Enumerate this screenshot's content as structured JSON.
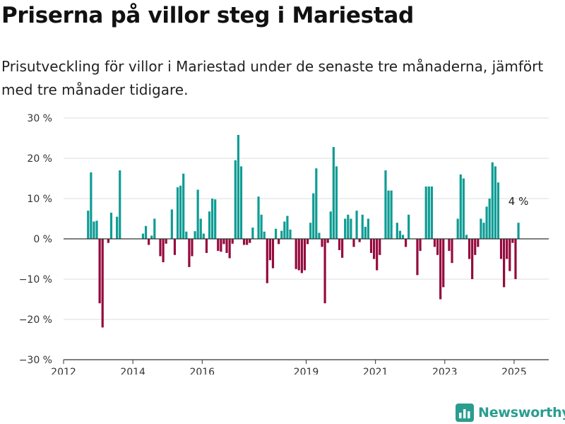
{
  "header": {
    "title": "Priserna på villor steg i Mariestad",
    "subtitle": "Prisutveckling för villor i Mariestad under de senaste tre månaderna, jämfört med tre månader tidigare."
  },
  "brand": {
    "name": "Newsworthy"
  },
  "colors": {
    "positive": "#0e9c94",
    "negative": "#940a3d",
    "grid": "#dddddd",
    "axis": "#333333"
  },
  "chart_data": {
    "type": "bar",
    "title": "Priserna på villor steg i Mariestad",
    "xlabel": "",
    "ylabel": "",
    "ylim": [
      -30,
      30
    ],
    "yticks": [
      30,
      20,
      10,
      0,
      -10,
      -20,
      -30
    ],
    "ytick_labels": [
      "30 %",
      "20 %",
      "10 %",
      "0 %",
      "−10 %",
      "−20 %",
      "−30 %"
    ],
    "xticks": [
      "2012",
      "2014",
      "2016",
      "2019",
      "2021",
      "2023",
      "2025"
    ],
    "xlim_months": [
      "2012-01",
      "2025-12"
    ],
    "last_label": "4 %",
    "series": [
      {
        "values": [
          [
            "2012-09",
            7
          ],
          [
            "2012-10",
            16.5
          ],
          [
            "2012-11",
            4.3
          ],
          [
            "2012-12",
            4.5
          ],
          [
            "2013-01",
            -16
          ],
          [
            "2013-02",
            -22
          ],
          [
            "2013-04",
            -1
          ],
          [
            "2013-05",
            6.5
          ],
          [
            "2013-07",
            5.5
          ],
          [
            "2013-08",
            17
          ],
          [
            "2014-04",
            1.3
          ],
          [
            "2014-05",
            3.2
          ],
          [
            "2014-06",
            -1.5
          ],
          [
            "2014-07",
            0.8
          ],
          [
            "2014-08",
            5
          ],
          [
            "2014-10",
            -4.3
          ],
          [
            "2014-11",
            -5.8
          ],
          [
            "2014-12",
            -1.2
          ],
          [
            "2015-02",
            7.3
          ],
          [
            "2015-03",
            -4
          ],
          [
            "2015-04",
            12.8
          ],
          [
            "2015-05",
            13.2
          ],
          [
            "2015-06",
            16.2
          ],
          [
            "2015-07",
            1.8
          ],
          [
            "2015-08",
            -7
          ],
          [
            "2015-09",
            -4.3
          ],
          [
            "2015-10",
            1.9
          ],
          [
            "2015-11",
            12.2
          ],
          [
            "2015-12",
            5
          ],
          [
            "2016-01",
            1.3
          ],
          [
            "2016-02",
            -3.5
          ],
          [
            "2016-03",
            6.8
          ],
          [
            "2016-04",
            10
          ],
          [
            "2016-05",
            9.8
          ],
          [
            "2016-06",
            -3
          ],
          [
            "2016-07",
            -3.2
          ],
          [
            "2016-08",
            -1.3
          ],
          [
            "2016-09",
            -3.5
          ],
          [
            "2016-10",
            -4.8
          ],
          [
            "2016-11",
            -1.2
          ],
          [
            "2016-12",
            19.5
          ],
          [
            "2017-01",
            25.8
          ],
          [
            "2017-02",
            18
          ],
          [
            "2017-03",
            -1.5
          ],
          [
            "2017-04",
            -1.5
          ],
          [
            "2017-05",
            -1
          ],
          [
            "2017-06",
            2.8
          ],
          [
            "2017-08",
            10.5
          ],
          [
            "2017-09",
            6
          ],
          [
            "2017-10",
            1.8
          ],
          [
            "2017-11",
            -11
          ],
          [
            "2017-12",
            -5.3
          ],
          [
            "2018-01",
            -7.3
          ],
          [
            "2018-02",
            2.5
          ],
          [
            "2018-03",
            -1.3
          ],
          [
            "2018-04",
            2
          ],
          [
            "2018-05",
            4.3
          ],
          [
            "2018-06",
            5.7
          ],
          [
            "2018-07",
            2.3
          ],
          [
            "2018-09",
            -7.5
          ],
          [
            "2018-10",
            -7.8
          ],
          [
            "2018-11",
            -8.5
          ],
          [
            "2018-12",
            -7.8
          ],
          [
            "2019-01",
            -1.3
          ],
          [
            "2019-02",
            4
          ],
          [
            "2019-03",
            11.3
          ],
          [
            "2019-04",
            17.5
          ],
          [
            "2019-05",
            1.5
          ],
          [
            "2019-06",
            -2
          ],
          [
            "2019-07",
            -16
          ],
          [
            "2019-08",
            -1
          ],
          [
            "2019-09",
            6.8
          ],
          [
            "2019-10",
            22.8
          ],
          [
            "2019-11",
            18
          ],
          [
            "2019-12",
            -2.8
          ],
          [
            "2020-01",
            -4.7
          ],
          [
            "2020-02",
            5
          ],
          [
            "2020-03",
            6
          ],
          [
            "2020-04",
            5
          ],
          [
            "2020-05",
            -2
          ],
          [
            "2020-06",
            7
          ],
          [
            "2020-07",
            -0.8
          ],
          [
            "2020-08",
            6
          ],
          [
            "2020-09",
            3
          ],
          [
            "2020-10",
            5
          ],
          [
            "2020-11",
            -3.5
          ],
          [
            "2020-12",
            -5
          ],
          [
            "2021-01",
            -7.8
          ],
          [
            "2021-02",
            -4
          ],
          [
            "2021-04",
            17
          ],
          [
            "2021-05",
            12
          ],
          [
            "2021-06",
            12
          ],
          [
            "2021-08",
            4
          ],
          [
            "2021-09",
            2
          ],
          [
            "2021-10",
            1
          ],
          [
            "2021-11",
            -2
          ],
          [
            "2021-12",
            6
          ],
          [
            "2022-03",
            -9
          ],
          [
            "2022-04",
            -3
          ],
          [
            "2022-06",
            13
          ],
          [
            "2022-07",
            13
          ],
          [
            "2022-08",
            13
          ],
          [
            "2022-09",
            -2
          ],
          [
            "2022-10",
            -4
          ],
          [
            "2022-11",
            -15
          ],
          [
            "2022-12",
            -12
          ],
          [
            "2023-02",
            -3
          ],
          [
            "2023-03",
            -6
          ],
          [
            "2023-05",
            5
          ],
          [
            "2023-06",
            16
          ],
          [
            "2023-07",
            15
          ],
          [
            "2023-08",
            1
          ],
          [
            "2023-09",
            -5
          ],
          [
            "2023-10",
            -10
          ],
          [
            "2023-11",
            -4
          ],
          [
            "2023-12",
            -2
          ],
          [
            "2024-01",
            5
          ],
          [
            "2024-02",
            4
          ],
          [
            "2024-03",
            8
          ],
          [
            "2024-04",
            10
          ],
          [
            "2024-05",
            19
          ],
          [
            "2024-06",
            18
          ],
          [
            "2024-07",
            14
          ],
          [
            "2024-08",
            -5
          ],
          [
            "2024-09",
            -12
          ],
          [
            "2024-10",
            -5
          ],
          [
            "2024-11",
            -8
          ],
          [
            "2024-12",
            -1
          ],
          [
            "2025-01",
            -10
          ],
          [
            "2025-02",
            4
          ]
        ]
      }
    ]
  }
}
